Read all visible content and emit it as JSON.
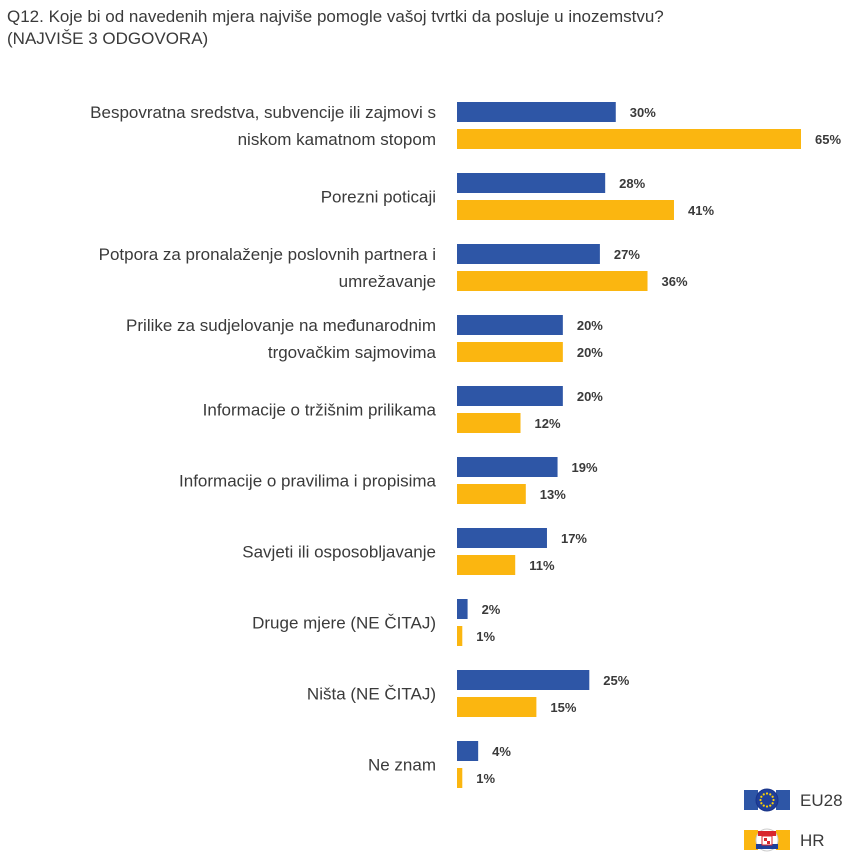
{
  "title_line1": "Q12. Koje bi od navedenih mjera najviše pomogle vašoj tvrtki da posluje u inozemstvu?",
  "title_line2": "(NAJVIŠE 3 ODGOVORA)",
  "colors": {
    "eu28": "#2e56a6",
    "hr": "#fbb610"
  },
  "legend": [
    {
      "name": "EU28",
      "icon": "eu-flag-icon"
    },
    {
      "name": "HR",
      "icon": "croatia-flag-icon"
    }
  ],
  "chart_data": {
    "type": "bar",
    "orientation": "horizontal",
    "title": "Q12. Koje bi od navedenih mjera najviše pomogle vašoj tvrtki da posluje u inozemstvu? (NAJVIŠE 3 ODGOVORA)",
    "categories": [
      [
        "Bespovratna sredstva, subvencije ili zajmovi s",
        "niskom kamatnom stopom"
      ],
      [
        "Porezni poticaji"
      ],
      [
        "Potpora za pronalaženje poslovnih partnera i",
        "umrežavanje"
      ],
      [
        "Prilike za sudjelovanje na međunarodnim",
        "trgovačkim sajmovima"
      ],
      [
        "Informacije o tržišnim prilikama"
      ],
      [
        "Informacije o pravilima i propisima"
      ],
      [
        "Savjeti ili osposobljavanje"
      ],
      [
        "Druge mjere (NE ČITAJ)"
      ],
      [
        "Ništa (NE ČITAJ)"
      ],
      [
        "Ne znam"
      ]
    ],
    "series": [
      {
        "name": "EU28",
        "values": [
          30,
          28,
          27,
          20,
          20,
          19,
          17,
          2,
          25,
          4
        ]
      },
      {
        "name": "HR",
        "values": [
          65,
          41,
          36,
          20,
          12,
          13,
          11,
          1,
          15,
          1
        ]
      }
    ],
    "value_suffix": "%",
    "xlim": [
      0,
      65
    ],
    "grid": false,
    "legend_position": "bottom-right"
  }
}
